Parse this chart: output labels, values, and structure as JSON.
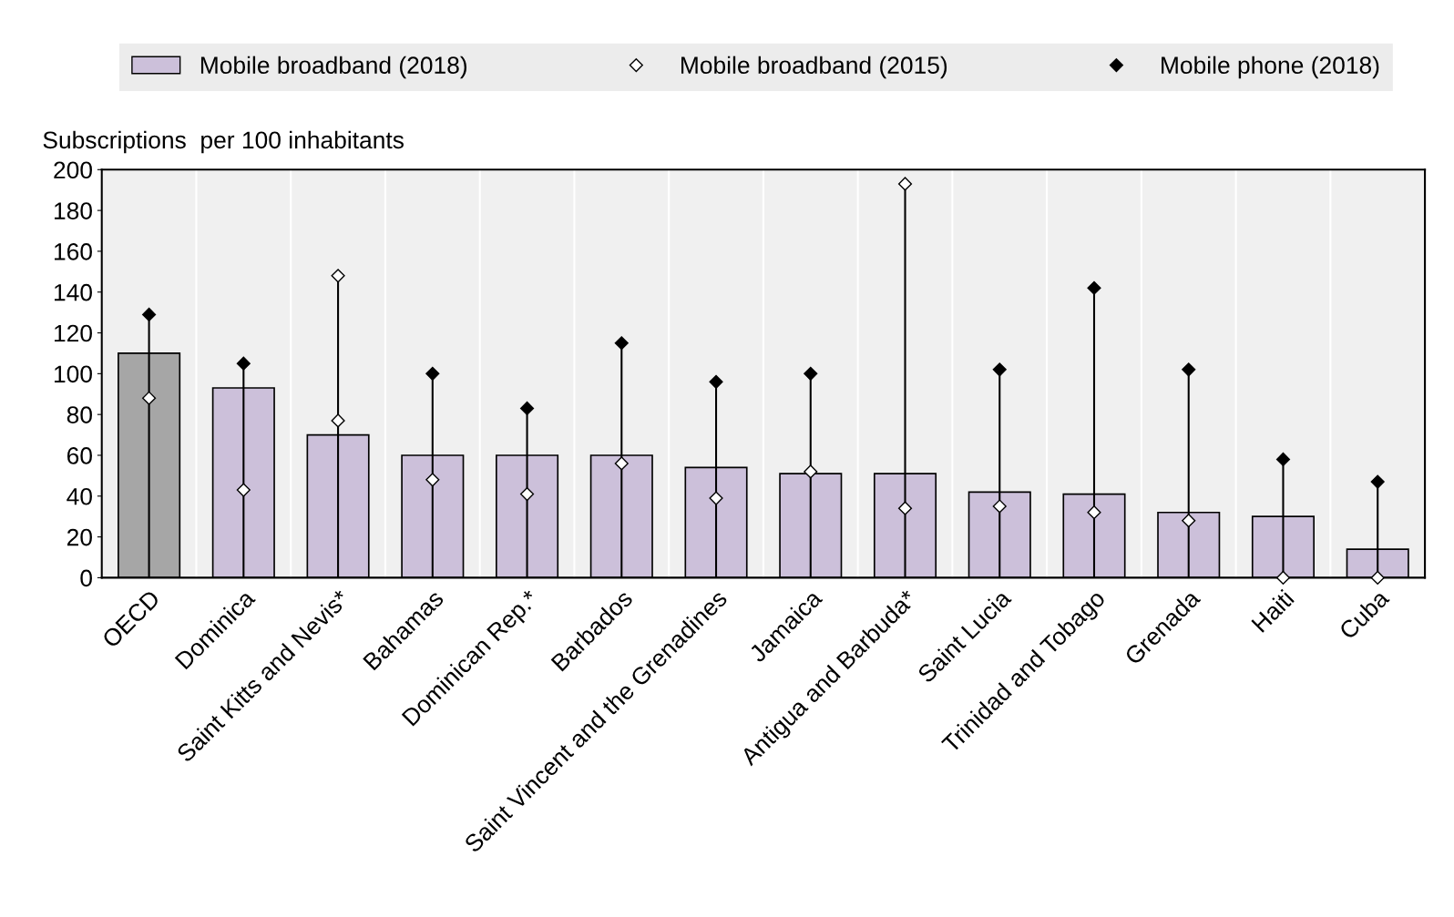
{
  "chart_data": {
    "type": "bar",
    "ylabel": "Subscriptions  per 100 inhabitants",
    "categories": [
      "OECD",
      "Dominica",
      "Saint Kitts and Nevis*",
      "Bahamas",
      "Dominican Rep.*",
      "Barbados",
      "Saint Vincent and the Grenadines",
      "Jamaica",
      "Antigua and Barbuda*",
      "Saint Lucia",
      "Trinidad and Tobago",
      "Grenada",
      "Haiti",
      "Cuba"
    ],
    "series": [
      {
        "name": "Mobile broadband (2018)",
        "type": "bar",
        "color": "#ccc0da",
        "colors": [
          "#a6a6a6",
          "#ccc0da",
          "#ccc0da",
          "#ccc0da",
          "#ccc0da",
          "#ccc0da",
          "#ccc0da",
          "#ccc0da",
          "#ccc0da",
          "#ccc0da",
          "#ccc0da",
          "#ccc0da",
          "#ccc0da",
          "#ccc0da"
        ],
        "values": [
          110,
          93,
          70,
          60,
          60,
          60,
          54,
          51,
          51,
          42,
          41,
          32,
          30,
          14
        ]
      },
      {
        "name": "Mobile broadband (2015)",
        "type": "scatter",
        "marker": "diamond",
        "color": "#ffffff",
        "values": [
          88,
          43,
          77,
          48,
          41,
          56,
          39,
          52,
          34,
          35,
          32,
          28,
          0,
          0
        ]
      },
      {
        "name": "Mobile phone (2018)",
        "type": "scatter",
        "marker": "diamond",
        "color": "#000000",
        "colors": [
          "#000000",
          "#000000",
          "#ffffff",
          "#000000",
          "#000000",
          "#000000",
          "#000000",
          "#000000",
          "#ffffff",
          "#000000",
          "#000000",
          "#000000",
          "#000000",
          "#000000"
        ],
        "values": [
          129,
          105,
          148,
          100,
          83,
          115,
          96,
          100,
          193,
          102,
          142,
          102,
          58,
          47
        ]
      }
    ],
    "ylim": [
      0,
      200
    ],
    "yticks": [
      0,
      20,
      40,
      60,
      80,
      100,
      120,
      140,
      160,
      180,
      200
    ],
    "grid": "x",
    "legend": "top"
  }
}
